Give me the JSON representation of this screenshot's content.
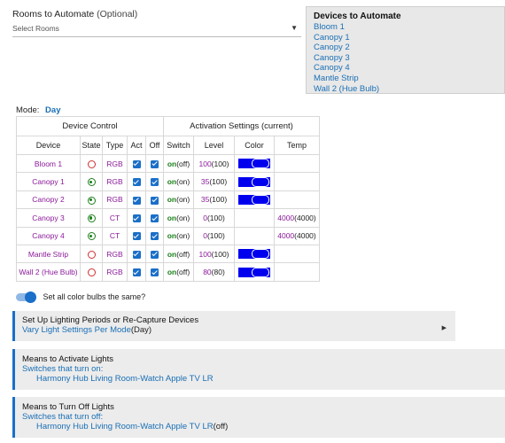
{
  "rooms": {
    "label": "Rooms to Automate",
    "optional": "(Optional)",
    "placeholder": "Select Rooms"
  },
  "devices_box": {
    "title": "Devices to Automate",
    "devices": [
      "Bloom 1",
      "Canopy 1",
      "Canopy 2",
      "Canopy 3",
      "Canopy 4",
      "Mantle Strip",
      "Wall 2 (Hue Bulb)"
    ]
  },
  "mode": {
    "label": "Mode:",
    "value": "Day"
  },
  "table": {
    "group_headers": [
      "Device Control",
      "Activation Settings (current)"
    ],
    "columns": [
      "Device",
      "State",
      "Type",
      "Act",
      "Off",
      "Switch",
      "Level",
      "Color",
      "Temp"
    ],
    "rows": [
      {
        "device": "Bloom 1",
        "state": "off",
        "type": "RGB",
        "act": true,
        "off": true,
        "switch": "on",
        "switch_cur": "(off)",
        "level": "100",
        "level_cur": "(100)",
        "color": "blue",
        "temp": "",
        "temp_cur": ""
      },
      {
        "device": "Canopy 1",
        "state": "on",
        "type": "RGB",
        "act": true,
        "off": true,
        "switch": "on",
        "switch_cur": "(on)",
        "level": "35",
        "level_cur": "(100)",
        "color": "blue",
        "temp": "",
        "temp_cur": ""
      },
      {
        "device": "Canopy 2",
        "state": "on",
        "type": "RGB",
        "act": true,
        "off": true,
        "switch": "on",
        "switch_cur": "(on)",
        "level": "35",
        "level_cur": "(100)",
        "color": "blue",
        "temp": "",
        "temp_cur": ""
      },
      {
        "device": "Canopy 3",
        "state": "on",
        "type": "CT",
        "act": true,
        "off": true,
        "switch": "on",
        "switch_cur": "(on)",
        "level": "0",
        "level_cur": "(100)",
        "color": "",
        "temp": "4000",
        "temp_cur": "(4000)"
      },
      {
        "device": "Canopy 4",
        "state": "on",
        "type": "CT",
        "act": true,
        "off": true,
        "switch": "on",
        "switch_cur": "(on)",
        "level": "0",
        "level_cur": "(100)",
        "color": "",
        "temp": "4000",
        "temp_cur": "(4000)"
      },
      {
        "device": "Mantle Strip",
        "state": "off",
        "type": "RGB",
        "act": true,
        "off": true,
        "switch": "on",
        "switch_cur": "(off)",
        "level": "100",
        "level_cur": "(100)",
        "color": "blue",
        "temp": "",
        "temp_cur": ""
      },
      {
        "device": "Wall 2 (Hue Bulb)",
        "state": "off",
        "type": "RGB",
        "act": true,
        "off": true,
        "switch": "on",
        "switch_cur": "(off)",
        "level": "80",
        "level_cur": "(80)",
        "color": "blue",
        "temp": "",
        "temp_cur": ""
      }
    ]
  },
  "toggle": {
    "label": "Set all color bulbs the same?",
    "checked": true
  },
  "sections": {
    "lighting": {
      "title": "Set Up Lighting Periods or Re-Capture Devices",
      "subtitle": "Vary Light Settings Per Mode",
      "subtitle_suffix": "(Day)",
      "arrow_icon": "triangle-right-icon"
    },
    "activate": {
      "title": "Means to Activate Lights",
      "subtitle": "Switches that turn on:",
      "item": "Harmony Hub Living Room-Watch Apple TV LR"
    },
    "turnoff": {
      "title": "Means to Turn Off Lights",
      "subtitle": "Switches that turn off:",
      "item": "Harmony Hub Living Room-Watch Apple TV LR",
      "item_suffix": "(off)"
    }
  },
  "colors": {
    "accent": "#1a6fc8",
    "link": "#1a6fb5",
    "device": "#8b1a9a",
    "on": "#1a7f1a",
    "off": "#d03030",
    "swatch": "#0000ee"
  }
}
